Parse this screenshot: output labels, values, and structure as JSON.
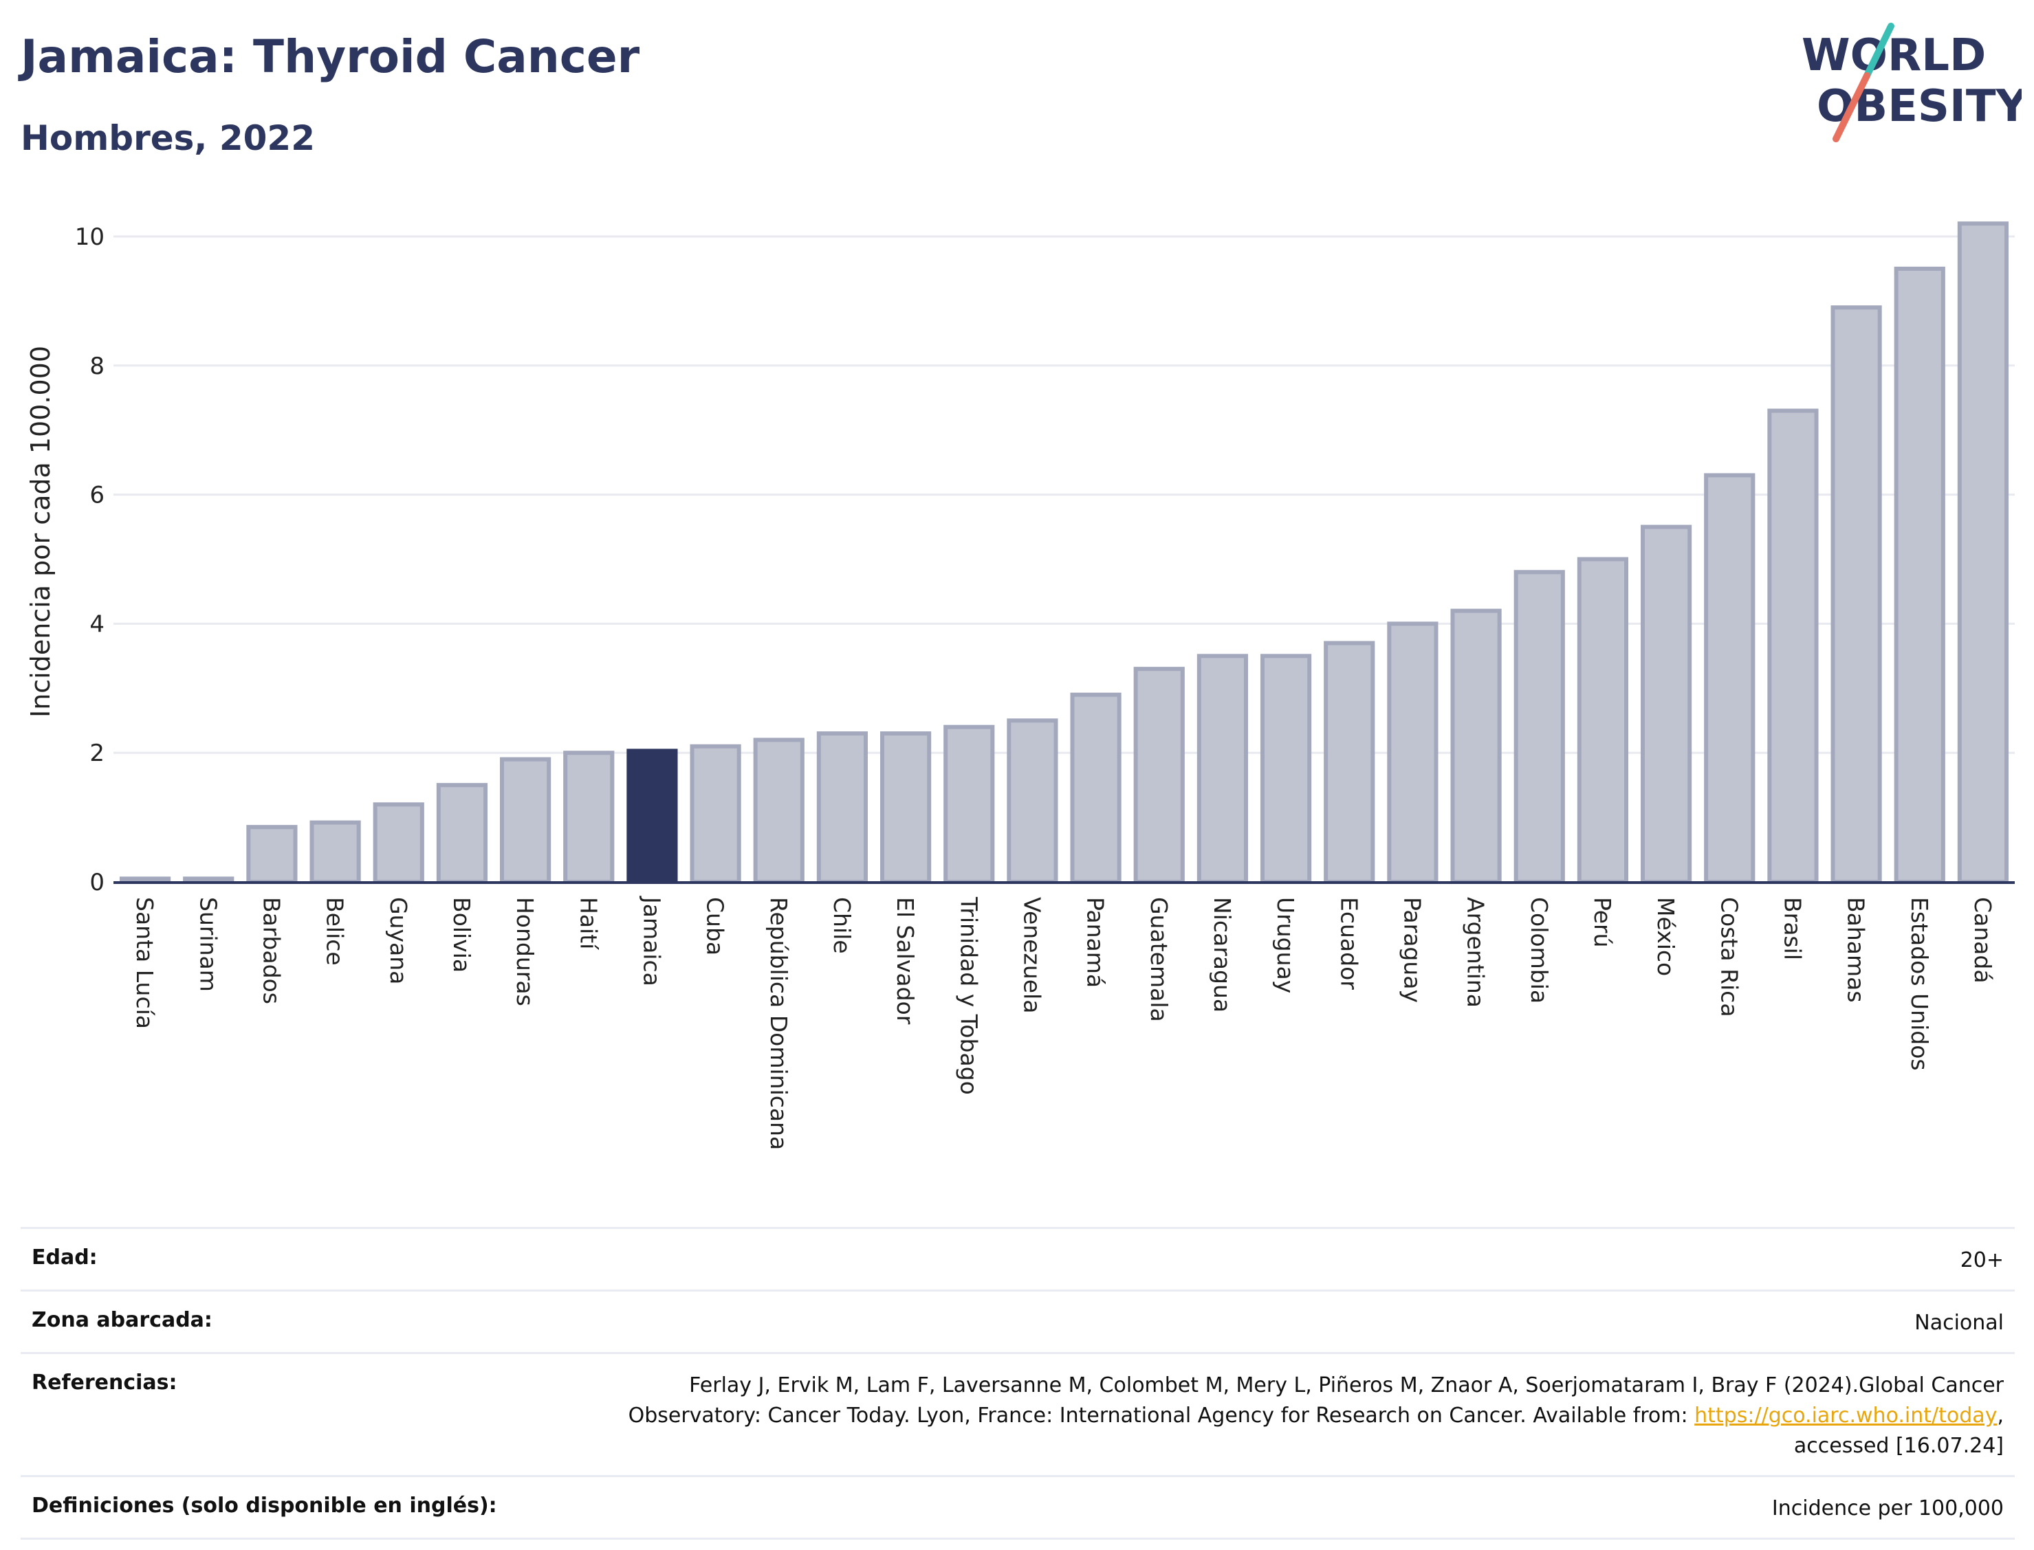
{
  "header": {
    "title": "Jamaica: Thyroid Cancer",
    "subtitle": "Hombres, 2022"
  },
  "logo": {
    "line1": "WORLD",
    "line2": "OBESITY",
    "slash_colors": [
      "#3bbfb5",
      "#e8705f"
    ]
  },
  "colors": {
    "highlight": "#2c365e",
    "bar_fill": "#c0c3d0",
    "bar_stroke": "#a3a8bd",
    "grid": "#e8eaf0",
    "title": "#2c365e",
    "link": "#e8a60c"
  },
  "chart_data": {
    "type": "bar",
    "title": "Jamaica: Thyroid Cancer",
    "subtitle": "Hombres, 2022",
    "xlabel": "",
    "ylabel": "Incidencia por cada 100.000",
    "ylim": [
      0,
      10.5
    ],
    "yticks": [
      0,
      2,
      4,
      6,
      8,
      10
    ],
    "grid": true,
    "highlight": "Jamaica",
    "categories": [
      "Santa Lucía",
      "Surinam",
      "Barbados",
      "Belice",
      "Guyana",
      "Bolivia",
      "Honduras",
      "Haití",
      "Jamaica",
      "Cuba",
      "República Dominicana",
      "Chile",
      "El Salvador",
      "Trinidad y Tobago",
      "Venezuela",
      "Panamá",
      "Guatemala",
      "Nicaragua",
      "Uruguay",
      "Ecuador",
      "Paraguay",
      "Argentina",
      "Colombia",
      "Perú",
      "México",
      "Costa Rica",
      "Brasil",
      "Bahamas",
      "Estados Unidos",
      "Canadá"
    ],
    "values": [
      0.05,
      0.05,
      0.85,
      0.92,
      1.2,
      1.5,
      1.9,
      2.0,
      2.03,
      2.1,
      2.2,
      2.3,
      2.3,
      2.4,
      2.5,
      2.9,
      3.3,
      3.5,
      3.5,
      3.7,
      4.0,
      4.2,
      4.8,
      5.0,
      5.5,
      6.3,
      7.3,
      8.9,
      9.5,
      10.2
    ]
  },
  "meta": [
    {
      "label": "Edad:",
      "value": "20+"
    },
    {
      "label": "Zona abarcada:",
      "value": "Nacional"
    },
    {
      "label": "Referencias:",
      "value_before": "Ferlay J, Ervik M, Lam F, Laversanne M, Colombet M, Mery L, Piñeros M, Znaor A, Soerjomataram I, Bray F (2024).Global Cancer Observatory: Cancer Today. Lyon, France: International Agency for Research on Cancer. Available from: ",
      "link": "https://gco.iarc.who.int/today",
      "value_after": ", accessed [16.07.24]"
    },
    {
      "label": "Definiciones (solo disponible en inglés):",
      "value": "Incidence per 100,000"
    }
  ]
}
